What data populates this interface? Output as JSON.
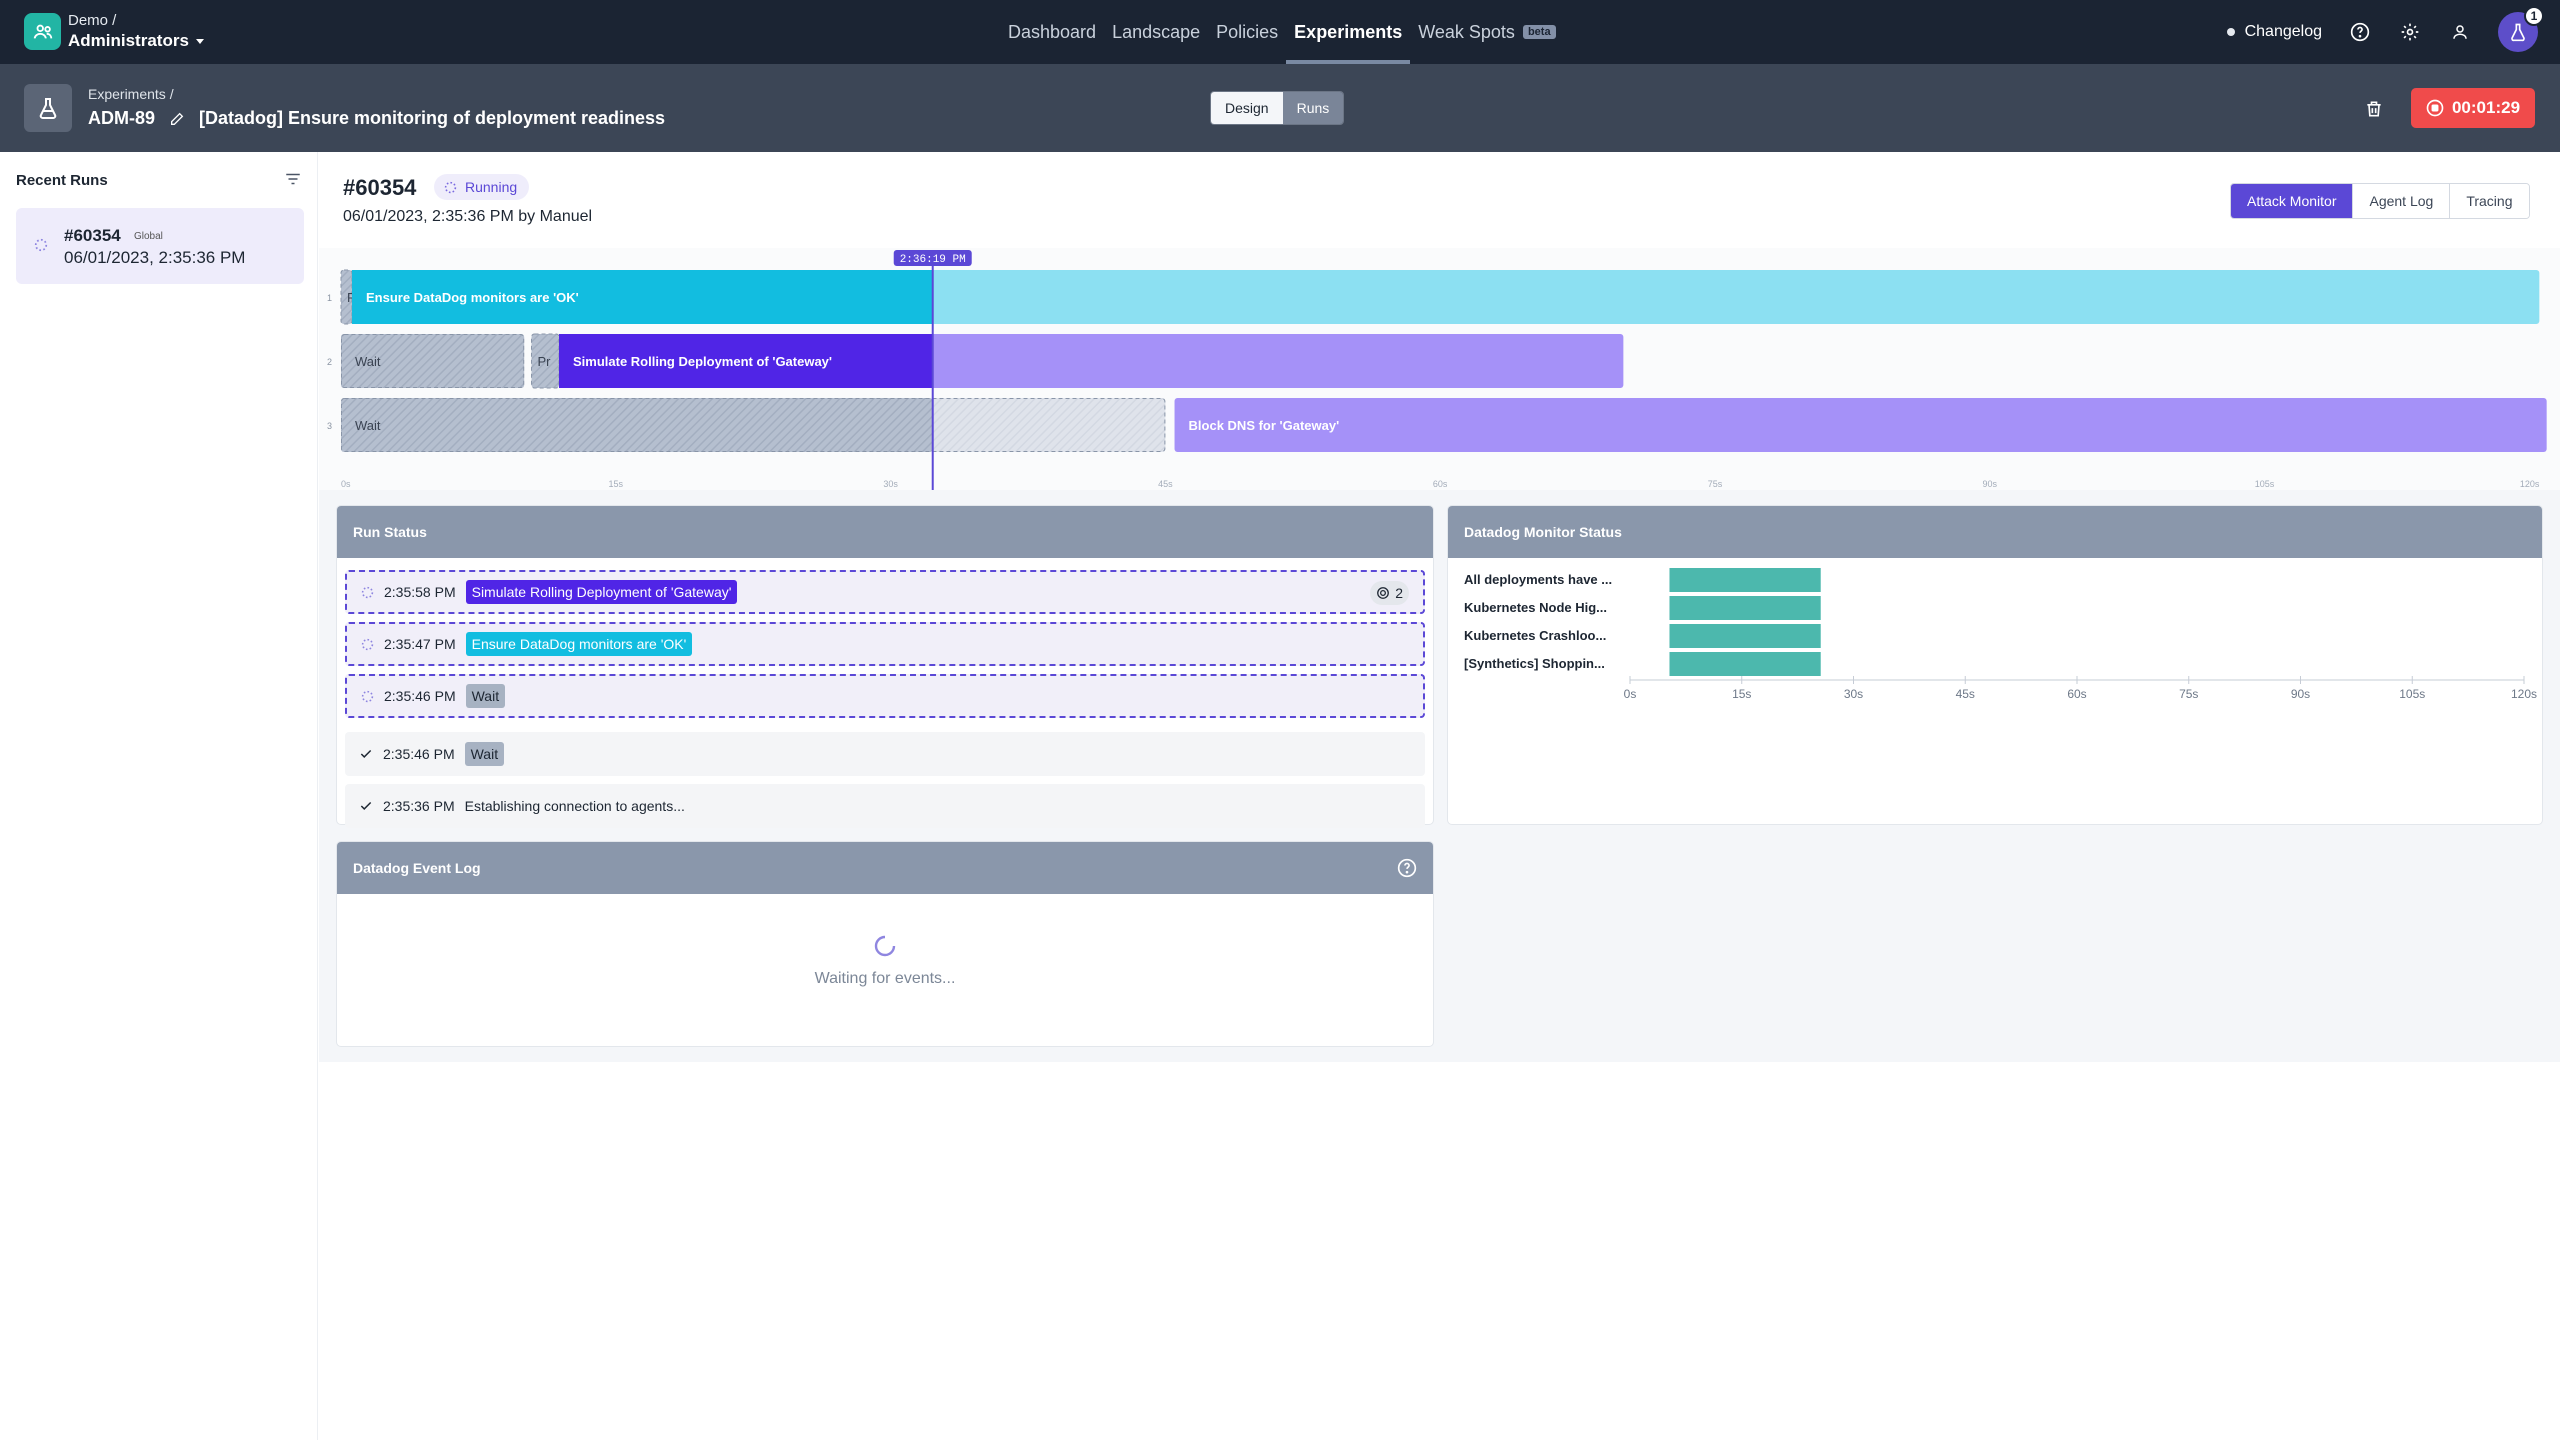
{
  "topbar": {
    "team_prefix": "Demo /",
    "team_name": "Administrators",
    "nav": [
      {
        "label": "Dashboard"
      },
      {
        "label": "Landscape"
      },
      {
        "label": "Policies"
      },
      {
        "label": "Experiments",
        "active": true
      },
      {
        "label": "Weak Spots",
        "badge": "beta"
      }
    ],
    "changelog": "Changelog",
    "avatar_badge": "1"
  },
  "subbar": {
    "breadcrumb": "Experiments /",
    "experiment_key": "ADM-89",
    "experiment_name": "[Datadog] Ensure monitoring of deployment readiness",
    "segment": {
      "design": "Design",
      "runs": "Runs"
    },
    "timer": "00:01:29"
  },
  "sidebar": {
    "title": "Recent Runs",
    "runs": [
      {
        "id": "#60354",
        "scope": "Global",
        "date": "06/01/2023, 2:35:36 PM"
      }
    ]
  },
  "run": {
    "id": "#60354",
    "status": "Running",
    "meta": "06/01/2023, 2:35:36 PM by Manuel",
    "tabs": [
      {
        "label": "Attack Monitor",
        "active": true
      },
      {
        "label": "Agent Log"
      },
      {
        "label": "Tracing"
      }
    ]
  },
  "timeline": {
    "cursor_label": "2:36:19 PM",
    "lane_numbers": [
      "1",
      "2",
      "3"
    ],
    "axis_ticks": [
      "0s",
      "15s",
      "30s",
      "45s",
      "60s",
      "75s",
      "90s",
      "105s",
      "120s"
    ],
    "lanes": [
      {
        "bars": [
          {
            "label": "P",
            "type": "prep",
            "start": 0,
            "end": 0.6
          },
          {
            "label": "Ensure DataDog monitors are 'OK'",
            "type": "check",
            "start": 0.6,
            "end": 120
          }
        ]
      },
      {
        "bars": [
          {
            "label": "Wait",
            "type": "wait",
            "start": 0,
            "end": 10
          },
          {
            "label": "Pr",
            "type": "prep",
            "start": 10.4,
            "end": 11.9
          },
          {
            "label": "Simulate Rolling Deployment of 'Gateway'",
            "type": "attack",
            "start": 11.9,
            "end": 70
          }
        ]
      },
      {
        "bars": [
          {
            "label": "Wait",
            "type": "wait",
            "start": 0,
            "end": 45
          },
          {
            "label": "Block DNS for 'Gateway'",
            "type": "attack-future",
            "start": 45.5,
            "end": 120.4
          }
        ]
      }
    ],
    "cursor_seconds": 32.3,
    "domain_max": 120.8
  },
  "run_status": {
    "title": "Run Status",
    "steps": [
      {
        "time": "2:35:58 PM",
        "label": "Simulate Rolling Deployment of 'Gateway'",
        "kind": "purple",
        "count": "2",
        "state": "running"
      },
      {
        "time": "2:35:47 PM",
        "label": "Ensure DataDog monitors are 'OK'",
        "kind": "cyan",
        "state": "running"
      },
      {
        "time": "2:35:46 PM",
        "label": "Wait",
        "kind": "grey",
        "state": "running"
      },
      {
        "time": "2:35:46 PM",
        "label": "Wait",
        "kind": "grey",
        "state": "done"
      },
      {
        "time": "2:35:36 PM",
        "label": "Establishing connection to agents...",
        "kind": "text",
        "state": "done"
      }
    ]
  },
  "monitor_status": {
    "title": "Datadog Monitor Status"
  },
  "chart_data": {
    "type": "bar",
    "orientation": "horizontal-timeline",
    "categories": [
      "All deployments have ...",
      "Kubernetes Node Hig...",
      "Kubernetes Crashloo...",
      "[Synthetics] Shoppin..."
    ],
    "series": [
      {
        "values": [
          [
            5.3,
            25.6
          ],
          [
            5.3,
            25.6
          ],
          [
            5.3,
            25.6
          ],
          [
            5.3,
            25.6
          ]
        ]
      }
    ],
    "x_ticks": [
      "0s",
      "15s",
      "30s",
      "45s",
      "60s",
      "75s",
      "90s",
      "105s",
      "120s"
    ],
    "xlim": [
      0,
      120
    ],
    "color": "#4cb8ad"
  },
  "event_log": {
    "title": "Datadog Event Log",
    "waiting": "Waiting for events..."
  },
  "colors": {
    "accent": "#5b48d6",
    "check": "#12bde0",
    "attack": "#5025e6",
    "stop": "#f04b4b"
  }
}
